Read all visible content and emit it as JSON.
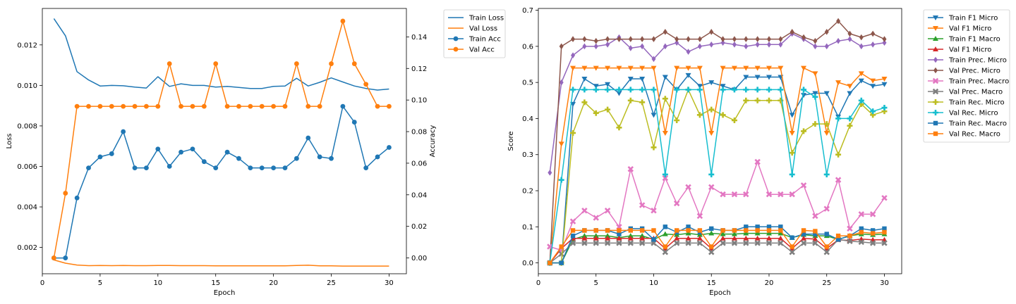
{
  "chart_data": [
    {
      "type": "line",
      "xlabel": "Epoch",
      "ylabel_left": "Loss",
      "ylabel_right": "Accuracy",
      "xlim": [
        0,
        31.5
      ],
      "ylim_left": [
        0.0007,
        0.0138
      ],
      "ylim_right": [
        -0.01,
        0.158
      ],
      "xticks": [
        0,
        5,
        10,
        15,
        20,
        25,
        30
      ],
      "yticks_left": [
        0.002,
        0.004,
        0.006,
        0.008,
        0.01,
        0.012
      ],
      "ytick_labels_left": [
        "0.002",
        "0.004",
        "0.006",
        "0.008",
        "0.010",
        "0.012"
      ],
      "yticks_right": [
        0.0,
        0.02,
        0.04,
        0.06,
        0.08,
        0.1,
        0.12,
        0.14
      ],
      "ytick_labels_right": [
        "0.00",
        "0.02",
        "0.04",
        "0.06",
        "0.08",
        "0.10",
        "0.12",
        "0.14"
      ],
      "legend_position": "outside-right-top",
      "x": [
        1,
        2,
        3,
        4,
        5,
        6,
        7,
        8,
        9,
        10,
        11,
        12,
        13,
        14,
        15,
        16,
        17,
        18,
        19,
        20,
        21,
        22,
        23,
        24,
        25,
        26,
        27,
        28,
        29,
        30
      ],
      "series": [
        {
          "name": "Train Loss",
          "axis": "left",
          "color": "#1f77b4",
          "marker": "none",
          "values": [
            0.0133,
            0.01245,
            0.01068,
            0.01027,
            0.00997,
            0.01,
            0.00998,
            0.00992,
            0.00987,
            0.01043,
            0.00995,
            0.01008,
            0.01,
            0.01,
            0.00992,
            0.00995,
            0.0099,
            0.00985,
            0.00985,
            0.00995,
            0.00997,
            0.01035,
            0.00997,
            0.01015,
            0.01037,
            0.01017,
            0.00997,
            0.00985,
            0.00977,
            0.00982
          ]
        },
        {
          "name": "Val Loss",
          "axis": "left",
          "color": "#ff7f0e",
          "marker": "none",
          "values": [
            0.00138,
            0.00122,
            0.00113,
            0.0011,
            0.00111,
            0.0011,
            0.00111,
            0.0011,
            0.0011,
            0.00111,
            0.00111,
            0.0011,
            0.0011,
            0.0011,
            0.00109,
            0.00109,
            0.00109,
            0.00109,
            0.00109,
            0.00109,
            0.00109,
            0.00111,
            0.00112,
            0.00109,
            0.00109,
            0.00108,
            0.00108,
            0.00108,
            0.00108,
            0.00108
          ]
        },
        {
          "name": "Train Acc",
          "axis": "right",
          "color": "#1f77b4",
          "marker": "circle",
          "values": [
            0.0,
            0.0,
            0.038,
            0.057,
            0.064,
            0.066,
            0.08,
            0.057,
            0.057,
            0.069,
            0.058,
            0.067,
            0.069,
            0.061,
            0.057,
            0.067,
            0.063,
            0.057,
            0.057,
            0.057,
            0.057,
            0.063,
            0.076,
            0.064,
            0.063,
            0.096,
            0.086,
            0.057,
            0.064,
            0.07
          ]
        },
        {
          "name": "Val Acc",
          "axis": "right",
          "color": "#ff7f0e",
          "marker": "circle",
          "values": [
            0.0,
            0.041,
            0.096,
            0.096,
            0.096,
            0.096,
            0.096,
            0.096,
            0.096,
            0.096,
            0.123,
            0.096,
            0.096,
            0.096,
            0.123,
            0.096,
            0.096,
            0.096,
            0.096,
            0.096,
            0.096,
            0.123,
            0.096,
            0.096,
            0.123,
            0.15,
            0.123,
            0.11,
            0.096,
            0.096
          ]
        }
      ]
    },
    {
      "type": "line",
      "xlabel": "Epoch",
      "ylabel": "Score",
      "xlim": [
        0,
        31.5
      ],
      "ylim": [
        -0.03,
        0.705
      ],
      "xticks": [
        0,
        5,
        10,
        15,
        20,
        25,
        30
      ],
      "yticks": [
        0.0,
        0.1,
        0.2,
        0.3,
        0.4,
        0.5,
        0.6,
        0.7
      ],
      "ytick_labels": [
        "0.0",
        "0.1",
        "0.2",
        "0.3",
        "0.4",
        "0.5",
        "0.6",
        "0.7"
      ],
      "legend_position": "outside-right-top",
      "x": [
        1,
        2,
        3,
        4,
        5,
        6,
        7,
        8,
        9,
        10,
        11,
        12,
        13,
        14,
        15,
        16,
        17,
        18,
        19,
        20,
        21,
        22,
        23,
        24,
        25,
        26,
        27,
        28,
        29,
        30
      ],
      "series": [
        {
          "name": "Train F1 Micro",
          "color": "#1f77b4",
          "marker": "triangle-down",
          "values": [
            0.0,
            0.0,
            0.44,
            0.51,
            0.49,
            0.495,
            0.47,
            0.51,
            0.51,
            0.41,
            0.515,
            0.48,
            0.52,
            0.49,
            0.5,
            0.49,
            0.48,
            0.515,
            0.515,
            0.515,
            0.515,
            0.41,
            0.465,
            0.47,
            0.47,
            0.405,
            0.47,
            0.505,
            0.49,
            0.495
          ]
        },
        {
          "name": "Val F1 Micro",
          "color": "#ff7f0e",
          "marker": "triangle-down",
          "values": [
            0.0,
            0.33,
            0.54,
            0.54,
            0.54,
            0.54,
            0.54,
            0.54,
            0.54,
            0.54,
            0.36,
            0.54,
            0.54,
            0.54,
            0.36,
            0.54,
            0.54,
            0.54,
            0.54,
            0.54,
            0.54,
            0.36,
            0.54,
            0.525,
            0.36,
            0.5,
            0.49,
            0.525,
            0.505,
            0.51
          ]
        },
        {
          "name": "Train F1 Macro",
          "color": "#2ca02c",
          "marker": "triangle-up",
          "values": [
            0.0,
            0.0,
            0.065,
            0.075,
            0.075,
            0.075,
            0.07,
            0.075,
            0.075,
            0.065,
            0.08,
            0.078,
            0.082,
            0.078,
            0.082,
            0.08,
            0.08,
            0.082,
            0.082,
            0.082,
            0.082,
            0.07,
            0.078,
            0.075,
            0.075,
            0.065,
            0.075,
            0.08,
            0.078,
            0.08
          ]
        },
        {
          "name": "Val F1 Micro",
          "color": "#d62728",
          "marker": "triangle-up",
          "values": [
            0.0,
            0.04,
            0.068,
            0.068,
            0.068,
            0.068,
            0.068,
            0.068,
            0.068,
            0.068,
            0.04,
            0.068,
            0.068,
            0.068,
            0.04,
            0.068,
            0.068,
            0.068,
            0.068,
            0.068,
            0.068,
            0.04,
            0.068,
            0.066,
            0.04,
            0.064,
            0.062,
            0.066,
            0.064,
            0.064
          ]
        },
        {
          "name": "Train Prec. Micro",
          "color": "#9467bd",
          "marker": "diamond",
          "values": [
            0.25,
            0.5,
            0.575,
            0.6,
            0.6,
            0.605,
            0.625,
            0.595,
            0.6,
            0.565,
            0.6,
            0.61,
            0.585,
            0.6,
            0.605,
            0.61,
            0.605,
            0.6,
            0.605,
            0.605,
            0.605,
            0.635,
            0.62,
            0.6,
            0.6,
            0.615,
            0.62,
            0.6,
            0.605,
            0.61
          ]
        },
        {
          "name": "Val Prec. Micro",
          "color": "#8c564b",
          "marker": "diamond",
          "values": [
            0.0,
            0.6,
            0.62,
            0.62,
            0.615,
            0.62,
            0.62,
            0.62,
            0.62,
            0.62,
            0.64,
            0.62,
            0.62,
            0.62,
            0.64,
            0.62,
            0.62,
            0.62,
            0.62,
            0.62,
            0.62,
            0.64,
            0.625,
            0.615,
            0.64,
            0.67,
            0.635,
            0.625,
            0.635,
            0.62
          ]
        },
        {
          "name": "Train Prec. Macro",
          "color": "#e377c2",
          "marker": "x",
          "values": [
            0.045,
            0.035,
            0.115,
            0.145,
            0.125,
            0.145,
            0.1,
            0.26,
            0.16,
            0.145,
            0.235,
            0.165,
            0.21,
            0.13,
            0.21,
            0.19,
            0.19,
            0.19,
            0.28,
            0.19,
            0.19,
            0.19,
            0.215,
            0.13,
            0.15,
            0.23,
            0.095,
            0.135,
            0.135,
            0.18
          ]
        },
        {
          "name": "Val Prec. Macro",
          "color": "#7f7f7f",
          "marker": "x",
          "values": [
            0.0,
            0.025,
            0.055,
            0.055,
            0.055,
            0.055,
            0.055,
            0.055,
            0.055,
            0.055,
            0.03,
            0.055,
            0.055,
            0.055,
            0.03,
            0.055,
            0.055,
            0.055,
            0.055,
            0.055,
            0.055,
            0.03,
            0.055,
            0.055,
            0.03,
            0.065,
            0.06,
            0.058,
            0.055,
            0.055
          ]
        },
        {
          "name": "Train Rec. Micro",
          "color": "#bcbd22",
          "marker": "plus",
          "values": [
            0.0,
            0.0,
            0.36,
            0.445,
            0.415,
            0.425,
            0.375,
            0.45,
            0.445,
            0.32,
            0.455,
            0.395,
            0.48,
            0.41,
            0.425,
            0.41,
            0.395,
            0.45,
            0.45,
            0.45,
            0.45,
            0.305,
            0.365,
            0.385,
            0.385,
            0.3,
            0.38,
            0.44,
            0.41,
            0.42
          ]
        },
        {
          "name": "Val Rec. Micro",
          "color": "#17becf",
          "marker": "plus",
          "values": [
            0.0,
            0.23,
            0.48,
            0.48,
            0.48,
            0.48,
            0.48,
            0.48,
            0.48,
            0.48,
            0.245,
            0.48,
            0.48,
            0.48,
            0.245,
            0.48,
            0.48,
            0.48,
            0.48,
            0.48,
            0.48,
            0.245,
            0.48,
            0.46,
            0.245,
            0.4,
            0.4,
            0.45,
            0.42,
            0.43
          ]
        },
        {
          "name": "Train Rec. Macro",
          "color": "#1f77b4",
          "marker": "square",
          "values": [
            0.0,
            0.0,
            0.075,
            0.09,
            0.09,
            0.09,
            0.08,
            0.095,
            0.095,
            0.065,
            0.1,
            0.085,
            0.1,
            0.085,
            0.095,
            0.09,
            0.09,
            0.1,
            0.1,
            0.1,
            0.1,
            0.07,
            0.08,
            0.08,
            0.08,
            0.065,
            0.075,
            0.095,
            0.09,
            0.095
          ]
        },
        {
          "name": "Val Rec. Macro",
          "color": "#ff7f0e",
          "marker": "square",
          "values": [
            0.0,
            0.045,
            0.09,
            0.09,
            0.09,
            0.09,
            0.09,
            0.09,
            0.09,
            0.09,
            0.045,
            0.09,
            0.09,
            0.09,
            0.045,
            0.09,
            0.09,
            0.09,
            0.09,
            0.09,
            0.09,
            0.045,
            0.09,
            0.088,
            0.045,
            0.075,
            0.075,
            0.085,
            0.082,
            0.085
          ]
        }
      ]
    }
  ]
}
